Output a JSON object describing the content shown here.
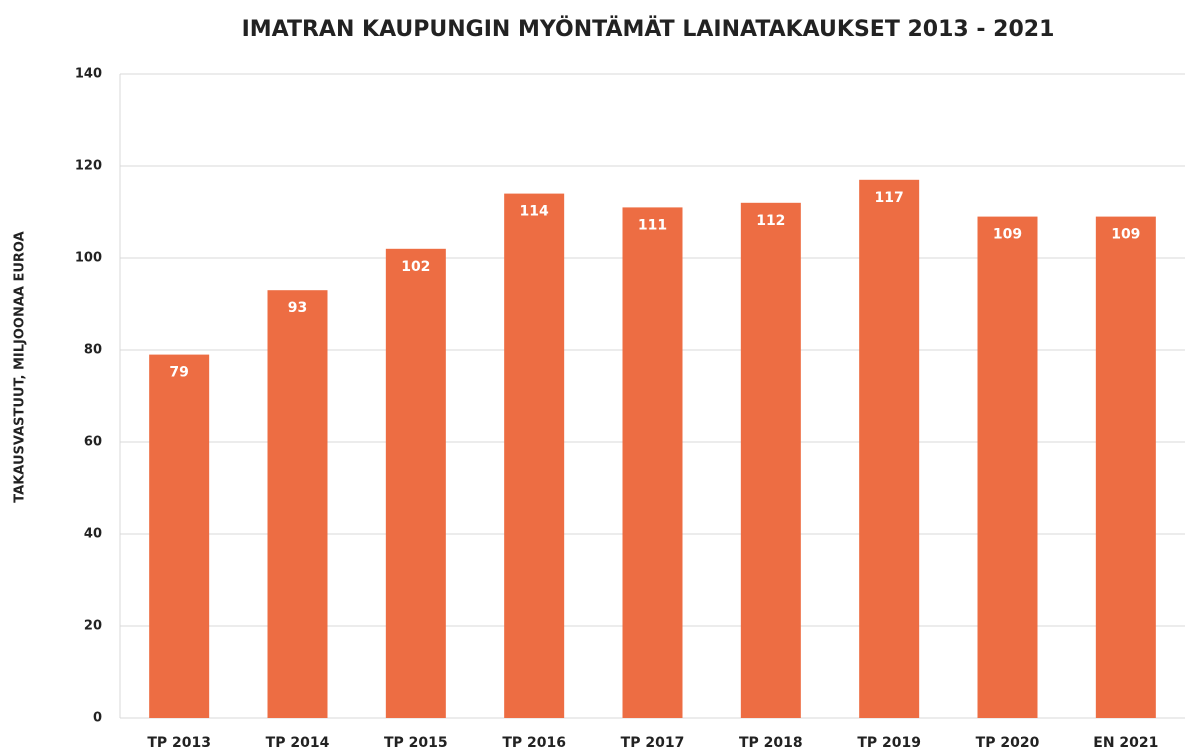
{
  "chart_data": {
    "type": "bar",
    "title": "IMATRAN KAUPUNGIN MYÖNTÄMÄT LAINATAKAUKSET 2013 - 2021",
    "y_label": "TAKAUSVASTUUT, MILJOONAA EUROA",
    "categories": [
      "TP 2013",
      "TP 2014",
      "TP 2015",
      "TP 2016",
      "TP 2017",
      "TP 2018",
      "TP 2019",
      "TP 2020",
      "EN 2021"
    ],
    "values": [
      79,
      93,
      102,
      114,
      111,
      112,
      117,
      109,
      109
    ],
    "color": "#ed6d43",
    "ylim": [
      0,
      140
    ],
    "yticks": [
      0,
      20,
      40,
      60,
      80,
      100,
      120,
      140
    ],
    "grid": true
  }
}
